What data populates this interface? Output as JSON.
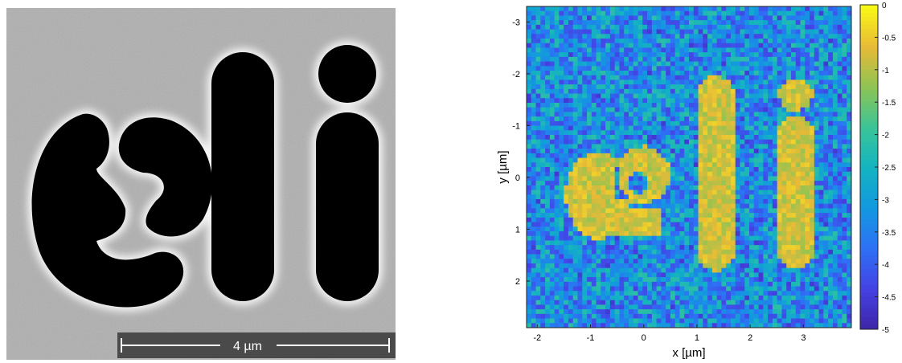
{
  "left_panel": {
    "scale_bar_label": "4 µm",
    "letters": "eli",
    "colors": {
      "background": "#b9b9b9",
      "letters": "#000000",
      "halo": "#f4f4f4"
    }
  },
  "right_panel": {
    "chart_data": {
      "type": "heatmap",
      "title": "",
      "xlabel": "x [µm]",
      "ylabel": "y [µm]",
      "xlim": [
        -2.2,
        3.9
      ],
      "ylim": [
        2.9,
        -3.3
      ],
      "x_ticks": [
        "-2",
        "-1",
        "0",
        "1",
        "2",
        "3"
      ],
      "x_tick_values": [
        -2,
        -1,
        0,
        1,
        2,
        3
      ],
      "y_ticks": [
        "-3",
        "-2",
        "-1",
        "0",
        "1",
        "2"
      ],
      "y_tick_values": [
        -3,
        -2,
        -1,
        0,
        1,
        2
      ],
      "colorbar": {
        "min": -5,
        "max": 0,
        "ticks": [
          "0",
          "-0.5",
          "-1",
          "-1.5",
          "-2",
          "-2.5",
          "-3",
          "-3.5",
          "-4",
          "-4.5",
          "-5"
        ],
        "tick_values": [
          0,
          -0.5,
          -1,
          -1.5,
          -2,
          -2.5,
          -3,
          -3.5,
          -4,
          -4.5,
          -5
        ]
      },
      "background_value": -3.2,
      "letters_value": -0.8,
      "colormap": "parula"
    }
  }
}
